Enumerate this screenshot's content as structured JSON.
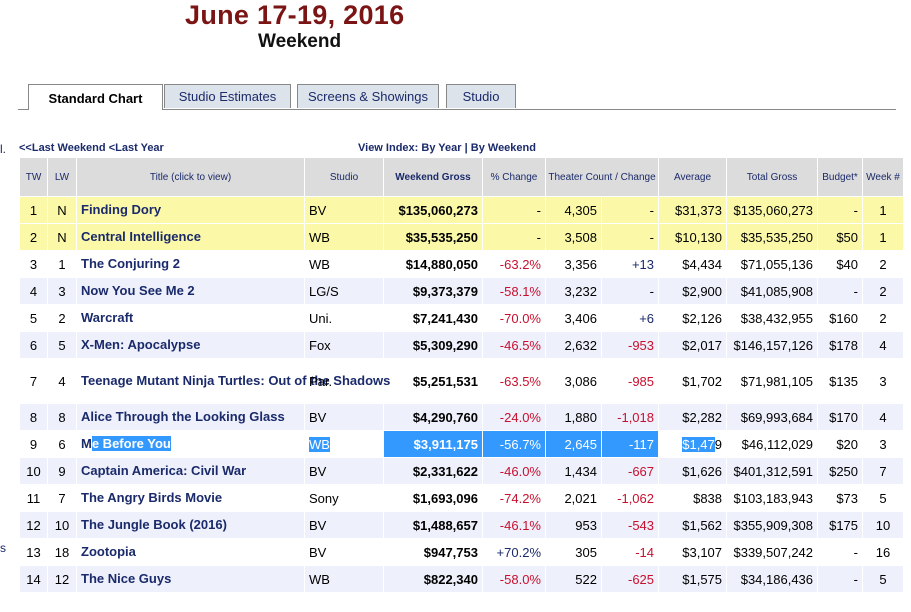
{
  "header": {
    "date": "June 17-19, 2016",
    "subtitle": "Weekend"
  },
  "tabs": [
    {
      "label": "Standard Chart",
      "active": true
    },
    {
      "label": "Studio Estimates",
      "active": false
    },
    {
      "label": "Screens & Showings",
      "active": false
    },
    {
      "label": "Studio",
      "active": false
    }
  ],
  "nav": {
    "last_weekend": "<<Last Weekend",
    "last_year": "<Last Year",
    "view_index_label": "View Index:",
    "by_year": "By Year",
    "separator": "|",
    "by_weekend": "By Weekend"
  },
  "edge_marks": {
    "top": "l.",
    "bottom": "s"
  },
  "columns": {
    "tw": "TW",
    "lw": "LW",
    "title": "Title (click to view)",
    "studio": "Studio",
    "weekend_gross": "Weekend Gross",
    "pct_change": "% Change",
    "theater_count": "Theater Count / Change",
    "average": "Average",
    "total_gross": "Total Gross",
    "budget": "Budget*",
    "week": "Week #"
  },
  "rows": [
    {
      "tw": "1",
      "lw": "N",
      "title": "Finding Dory",
      "studio": "BV",
      "gross": "$135,060,273",
      "pct": "-",
      "theaters": "4,305",
      "tchange": "-",
      "avg": "$31,373",
      "total": "$135,060,273",
      "budget": "-",
      "week": "1"
    },
    {
      "tw": "2",
      "lw": "N",
      "title": "Central Intelligence",
      "studio": "WB",
      "gross": "$35,535,250",
      "pct": "-",
      "theaters": "3,508",
      "tchange": "-",
      "avg": "$10,130",
      "total": "$35,535,250",
      "budget": "$50",
      "week": "1"
    },
    {
      "tw": "3",
      "lw": "1",
      "title": "The Conjuring 2",
      "studio": "WB",
      "gross": "$14,880,050",
      "pct": "-63.2%",
      "theaters": "3,356",
      "tchange": "+13",
      "avg": "$4,434",
      "total": "$71,055,136",
      "budget": "$40",
      "week": "2"
    },
    {
      "tw": "4",
      "lw": "3",
      "title": "Now You See Me 2",
      "studio": "LG/S",
      "gross": "$9,373,379",
      "pct": "-58.1%",
      "theaters": "3,232",
      "tchange": "-",
      "avg": "$2,900",
      "total": "$41,085,908",
      "budget": "-",
      "week": "2"
    },
    {
      "tw": "5",
      "lw": "2",
      "title": "Warcraft",
      "studio": "Uni.",
      "gross": "$7,241,430",
      "pct": "-70.0%",
      "theaters": "3,406",
      "tchange": "+6",
      "avg": "$2,126",
      "total": "$38,432,955",
      "budget": "$160",
      "week": "2"
    },
    {
      "tw": "6",
      "lw": "5",
      "title": "X-Men: Apocalypse",
      "studio": "Fox",
      "gross": "$5,309,290",
      "pct": "-46.5%",
      "theaters": "2,632",
      "tchange": "-953",
      "avg": "$2,017",
      "total": "$146,157,126",
      "budget": "$178",
      "week": "4"
    },
    {
      "tw": "7",
      "lw": "4",
      "title": "Teenage Mutant Ninja Turtles: Out of the Shadows",
      "studio": "Par.",
      "gross": "$5,251,531",
      "pct": "-63.5%",
      "theaters": "3,086",
      "tchange": "-985",
      "avg": "$1,702",
      "total": "$71,981,105",
      "budget": "$135",
      "week": "3"
    },
    {
      "tw": "8",
      "lw": "8",
      "title": "Alice Through the Looking Glass",
      "studio": "BV",
      "gross": "$4,290,760",
      "pct": "-24.0%",
      "theaters": "1,880",
      "tchange": "-1,018",
      "avg": "$2,282",
      "total": "$69,993,684",
      "budget": "$170",
      "week": "4"
    },
    {
      "tw": "9",
      "lw": "6",
      "title_a": "M",
      "title_b": "e Before You",
      "studio": "WB",
      "gross": "$3,911,175",
      "pct": "-56.7%",
      "theaters": "2,645",
      "tchange": "-117",
      "avg_a": "$1,47",
      "avg_b": "9",
      "total": "$46,112,029",
      "budget": "$20",
      "week": "3"
    },
    {
      "tw": "10",
      "lw": "9",
      "title": "Captain America: Civil War",
      "studio": "BV",
      "gross": "$2,331,622",
      "pct": "-46.0%",
      "theaters": "1,434",
      "tchange": "-667",
      "avg": "$1,626",
      "total": "$401,312,591",
      "budget": "$250",
      "week": "7"
    },
    {
      "tw": "11",
      "lw": "7",
      "title": "The Angry Birds Movie",
      "studio": "Sony",
      "gross": "$1,693,096",
      "pct": "-74.2%",
      "theaters": "2,021",
      "tchange": "-1,062",
      "avg": "$838",
      "total": "$103,183,943",
      "budget": "$73",
      "week": "5"
    },
    {
      "tw": "12",
      "lw": "10",
      "title": "The Jungle Book (2016)",
      "studio": "BV",
      "gross": "$1,488,657",
      "pct": "-46.1%",
      "theaters": "953",
      "tchange": "-543",
      "avg": "$1,562",
      "total": "$355,909,308",
      "budget": "$175",
      "week": "10"
    },
    {
      "tw": "13",
      "lw": "18",
      "title": "Zootopia",
      "studio": "BV",
      "gross": "$947,753",
      "pct": "+70.2%",
      "theaters": "305",
      "tchange": "-14",
      "avg": "$3,107",
      "total": "$339,507,242",
      "budget": "-",
      "week": "16"
    },
    {
      "tw": "14",
      "lw": "12",
      "title": "The Nice Guys",
      "studio": "WB",
      "gross": "$822,340",
      "pct": "-58.0%",
      "theaters": "522",
      "tchange": "-625",
      "avg": "$1,575",
      "total": "$34,186,436",
      "budget": "-",
      "week": "5"
    }
  ],
  "colors": {
    "header_date": "#7b1414",
    "link": "#1a2a6a",
    "negative": "#c8102e",
    "new_release_row": "#fbf9a8",
    "alt_row": "#eef0fb",
    "selection": "#3399ff"
  }
}
